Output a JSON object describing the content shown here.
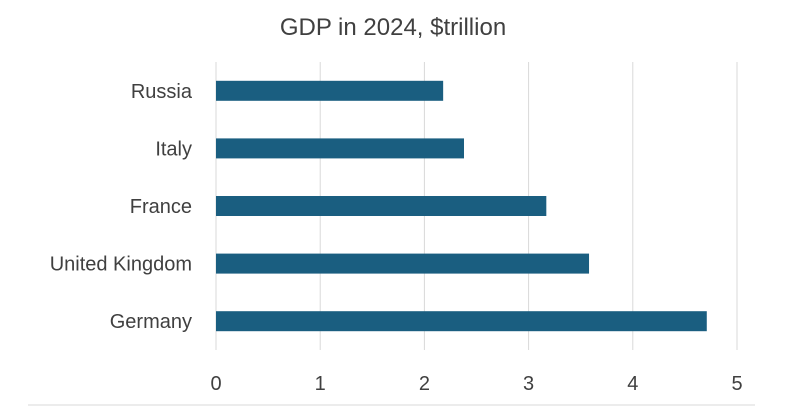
{
  "chart_data": {
    "type": "bar",
    "orientation": "horizontal",
    "title": "GDP in 2024, $trillion",
    "categories": [
      "Russia",
      "Italy",
      "France",
      "United Kingdom",
      "Germany"
    ],
    "values": [
      2.18,
      2.38,
      3.17,
      3.58,
      4.71
    ],
    "xlim": [
      0,
      5
    ],
    "xticks": [
      "0",
      "1",
      "2",
      "3",
      "4",
      "5"
    ],
    "xlabel": "",
    "ylabel": "",
    "grid": "vertical",
    "legend": "none",
    "colors": {
      "bar": "#1a5e80",
      "grid": "#d9d9d9",
      "text": "#404040",
      "baseline": "#d9d9d9"
    }
  }
}
